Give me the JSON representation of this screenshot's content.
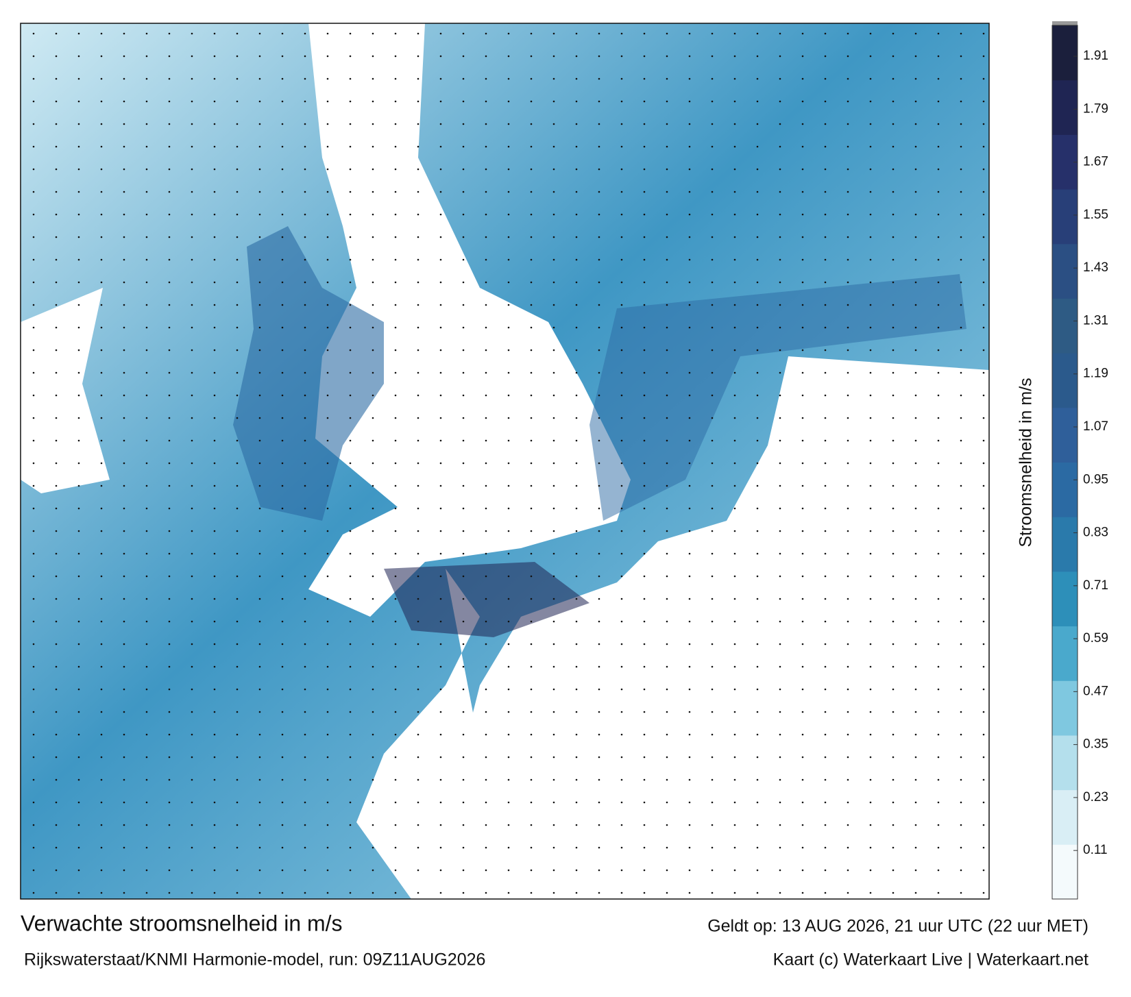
{
  "header": {
    "title": "Verwachte stroomsnelheid in m/s",
    "valid": "Geldt op: 13 AUG 2026, 21 uur UTC (22 uur MET)",
    "model": "Rijkswaterstaat/KNMI Harmonie-model, run: 09Z11AUG2026",
    "credit": "Kaart (c) Waterkaart Live | Waterkaart.net"
  },
  "chart_data": {
    "type": "colorbar",
    "label": "Stroomsnelheid in m/s",
    "ylim": [
      0,
      1.98
    ],
    "yticks": [
      0.11,
      0.23,
      0.35,
      0.47,
      0.59,
      0.71,
      0.83,
      0.95,
      1.07,
      1.19,
      1.31,
      1.43,
      1.55,
      1.67,
      1.79,
      1.91
    ],
    "colors": [
      "#f4fafc",
      "#d9eef5",
      "#b4dfec",
      "#7fc8e0",
      "#4aa9cc",
      "#2d8fb9",
      "#2a7aab",
      "#2b6aa3",
      "#2f5f9a",
      "#2b5a8c",
      "#2e5b84",
      "#2b4f83",
      "#283f78",
      "#26306a",
      "#1f2553",
      "#1b1f3c"
    ]
  }
}
